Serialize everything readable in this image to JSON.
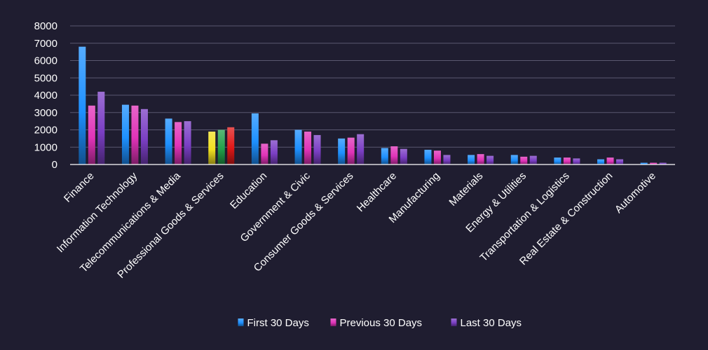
{
  "chart_data": {
    "type": "bar",
    "title": "",
    "xlabel": "",
    "ylabel": "",
    "ylim": [
      0,
      8000
    ],
    "yticks": [
      0,
      1000,
      2000,
      3000,
      4000,
      5000,
      6000,
      7000,
      8000
    ],
    "grid": true,
    "legend_position": "bottom-center",
    "categories": [
      "Finance",
      "Information Technology",
      "Telecommunications & Media",
      "Professional Goods & Services",
      "Education",
      "Government & Civic",
      "Consumer Goods &  Services",
      "Healthcare",
      "Manufacturing",
      "Materials",
      "Energy & Utilities",
      "Transportation & Logistics",
      "Real Estate & Construction",
      "Automotive"
    ],
    "series": [
      {
        "name": "First 30 Days",
        "color": "#1e90ff",
        "values": [
          6800,
          3450,
          2650,
          1900,
          2950,
          2000,
          1500,
          950,
          850,
          550,
          550,
          400,
          300,
          100
        ]
      },
      {
        "name": "Previous 30 Days",
        "color": "#e033b8",
        "values": [
          3400,
          3400,
          2450,
          2000,
          1200,
          1900,
          1550,
          1050,
          800,
          600,
          450,
          400,
          400,
          100
        ]
      },
      {
        "name": "Last 30 Days",
        "color": "#7b3fc4",
        "values": [
          4200,
          3200,
          2500,
          2150,
          1400,
          1700,
          1750,
          900,
          550,
          500,
          500,
          350,
          300,
          100
        ]
      }
    ],
    "highlight_colors": [
      "#f0e020",
      "#22a04a",
      "#e01818"
    ]
  }
}
